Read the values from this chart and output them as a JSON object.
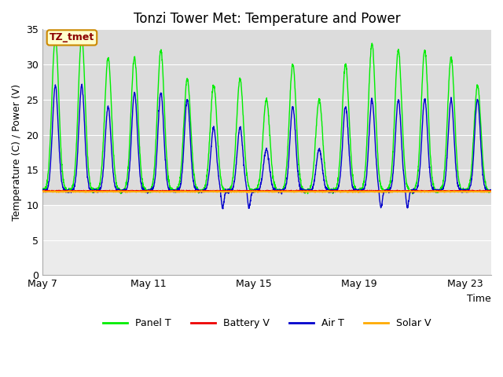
{
  "title": "Tonzi Tower Met: Temperature and Power",
  "xlabel": "Time",
  "ylabel": "Temperature (C) / Power (V)",
  "ylim": [
    0,
    35
  ],
  "yticks": [
    0,
    5,
    10,
    15,
    20,
    25,
    30,
    35
  ],
  "xtick_labels": [
    "May 7",
    "May 11",
    "May 15",
    "May 19",
    "May 23"
  ],
  "xtick_positions": [
    0,
    4,
    8,
    12,
    16
  ],
  "n_days": 17,
  "annotation_text": "TZ_tmet",
  "annotation_color": "#8b0000",
  "annotation_bg": "#ffffcc",
  "annotation_border": "#cc8800",
  "legend_labels": [
    "Panel T",
    "Battery V",
    "Air T",
    "Solar V"
  ],
  "panel_t_color": "#00ee00",
  "battery_v_color": "#ee0000",
  "air_t_color": "#0000cc",
  "solar_v_color": "#ffaa00",
  "bg_upper_color": "#dcdcdc",
  "bg_lower_color": "#ebebeb",
  "bg_upper_ymin": 10,
  "bg_upper_ymax": 35,
  "bg_lower_ymin": 0,
  "bg_lower_ymax": 10,
  "title_fontsize": 12,
  "axis_fontsize": 9,
  "tick_fontsize": 9
}
